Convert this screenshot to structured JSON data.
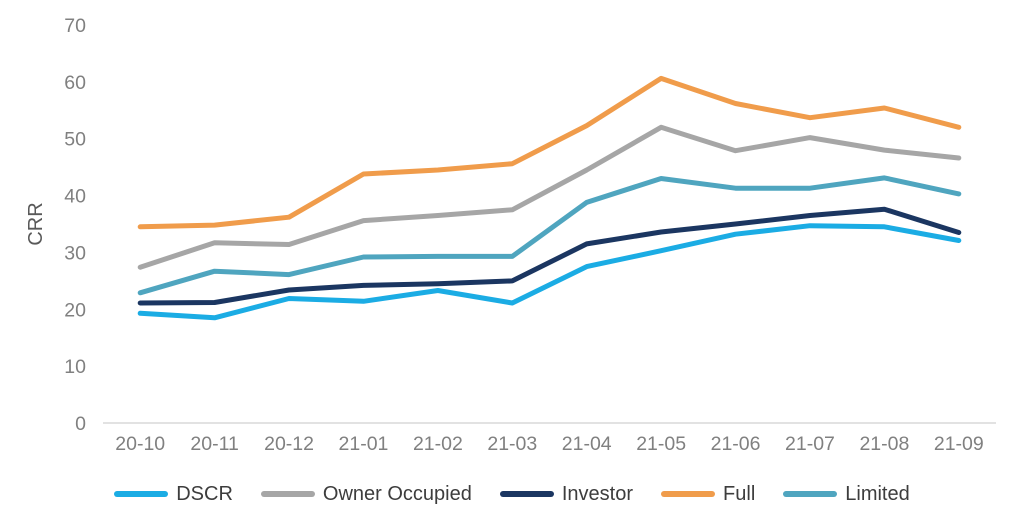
{
  "chart_data": {
    "type": "line",
    "title": "",
    "ylabel": "CRR",
    "xlabel": "",
    "ylim": [
      0,
      70
    ],
    "y_ticks": [
      70,
      60,
      50,
      40,
      30,
      20,
      10,
      0
    ],
    "grid": false,
    "legend_position": "bottom",
    "background": "#ffffff",
    "axis_line_color": "#d9d9d9",
    "tick_label_color": "#808080",
    "axis_title_color": "#595959",
    "legend_text_color": "#3d3d3d",
    "categories": [
      "20-10",
      "20-11",
      "20-12",
      "21-01",
      "21-02",
      "21-03",
      "21-04",
      "21-05",
      "21-06",
      "21-07",
      "21-08",
      "21-09"
    ],
    "series": [
      {
        "name": "DSCR",
        "color": "#1bace4",
        "values": [
          19.3,
          18.5,
          21.9,
          21.4,
          23.3,
          21.1,
          27.5,
          30.3,
          33.2,
          34.7,
          34.5,
          32.1
        ]
      },
      {
        "name": "Owner Occupied",
        "color": "#a6a6a6",
        "values": [
          27.4,
          31.7,
          31.4,
          35.6,
          36.5,
          37.5,
          44.5,
          52.0,
          47.9,
          50.2,
          48.0,
          46.6
        ]
      },
      {
        "name": "Investor",
        "color": "#1b3661",
        "values": [
          21.1,
          21.2,
          23.4,
          24.2,
          24.5,
          25.0,
          31.5,
          33.6,
          35.0,
          36.5,
          37.6,
          33.5
        ]
      },
      {
        "name": "Full",
        "color": "#f09c4b",
        "values": [
          34.5,
          34.8,
          36.2,
          43.8,
          44.5,
          45.6,
          52.3,
          60.6,
          56.2,
          53.7,
          55.4,
          52.0
        ]
      },
      {
        "name": "Limited",
        "color": "#4fa5bf",
        "values": [
          22.9,
          26.7,
          26.1,
          29.2,
          29.3,
          29.3,
          38.8,
          43.0,
          41.3,
          41.3,
          43.1,
          40.3
        ]
      }
    ]
  }
}
